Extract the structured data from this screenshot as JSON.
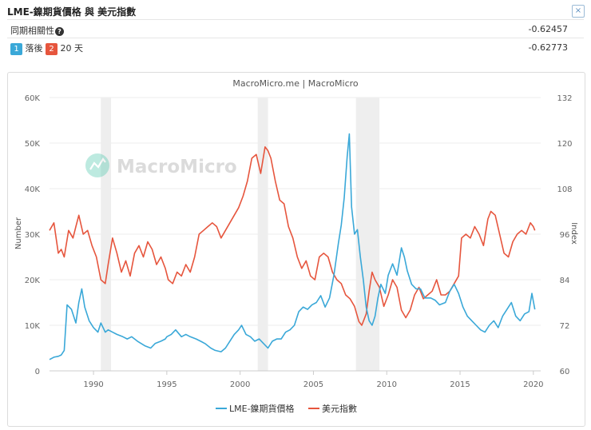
{
  "header": {
    "title": "LME-鎳期貨價格 與 美元指數",
    "close_icon": "close-icon",
    "corr_label": "同期相關性",
    "corr_value": "-0.62457",
    "lag_badge1": "1",
    "lag_text1": "落後",
    "lag_badge2": "2",
    "lag_text2": "20 天",
    "lag_value": "-0.62773"
  },
  "chart_data": {
    "type": "line",
    "title": "MacroMicro.me | MacroMicro",
    "watermark": "MacroMicro",
    "ylabel_left": "Number",
    "ylabel_right": "Index",
    "xlim": [
      1987,
      2020.5
    ],
    "ylim_left": [
      0,
      60000
    ],
    "ylim_right": [
      60,
      132
    ],
    "x_ticks": [
      "1990",
      "1995",
      "2000",
      "2005",
      "2010",
      "2015",
      "2020"
    ],
    "y_left_ticks": [
      "0",
      "10K",
      "20K",
      "30K",
      "40K",
      "50K",
      "60K"
    ],
    "y_right_ticks": [
      "60",
      "72",
      "84",
      "96",
      "108",
      "120",
      "132"
    ],
    "recessions": [
      [
        1990.5,
        1991.2
      ],
      [
        2001.2,
        2001.9
      ],
      [
        2007.9,
        2009.5
      ]
    ],
    "colors": {
      "nickel": "#3aa8d8",
      "usd": "#e6553d",
      "recession": "#eeeeee"
    },
    "series": [
      {
        "name": "LME-鎳期貨價格",
        "axis": "left",
        "x": [
          1987.0,
          1987.3,
          1987.6,
          1987.8,
          1988.0,
          1988.2,
          1988.5,
          1988.8,
          1989.0,
          1989.2,
          1989.4,
          1989.7,
          1990.0,
          1990.3,
          1990.5,
          1990.8,
          1991.0,
          1991.3,
          1991.6,
          1992.0,
          1992.3,
          1992.6,
          1993.0,
          1993.5,
          1993.9,
          1994.2,
          1994.6,
          1994.9,
          1995.0,
          1995.3,
          1995.6,
          1996.0,
          1996.3,
          1996.6,
          1997.0,
          1997.3,
          1997.6,
          1998.0,
          1998.3,
          1998.7,
          1999.0,
          1999.3,
          1999.6,
          1999.9,
          2000.1,
          2000.4,
          2000.7,
          2001.0,
          2001.3,
          2001.6,
          2001.9,
          2002.2,
          2002.5,
          2002.8,
          2003.1,
          2003.4,
          2003.7,
          2004.0,
          2004.3,
          2004.6,
          2004.9,
          2005.2,
          2005.5,
          2005.8,
          2006.1,
          2006.4,
          2006.7,
          2006.9,
          2007.1,
          2007.3,
          2007.45,
          2007.6,
          2007.8,
          2008.0,
          2008.2,
          2008.4,
          2008.6,
          2008.8,
          2009.0,
          2009.2,
          2009.4,
          2009.6,
          2009.9,
          2010.1,
          2010.4,
          2010.7,
          2011.0,
          2011.2,
          2011.4,
          2011.7,
          2012.0,
          2012.3,
          2012.6,
          2013.0,
          2013.3,
          2013.6,
          2014.0,
          2014.3,
          2014.6,
          2014.9,
          2015.2,
          2015.5,
          2015.8,
          2016.1,
          2016.4,
          2016.7,
          2017.0,
          2017.3,
          2017.6,
          2017.9,
          2018.2,
          2018.5,
          2018.8,
          2019.1,
          2019.4,
          2019.7,
          2019.9,
          2020.1
        ],
        "values": [
          2500,
          3000,
          3200,
          3500,
          4500,
          14500,
          13500,
          10500,
          15000,
          18000,
          14000,
          11000,
          9500,
          8500,
          10500,
          8500,
          9000,
          8500,
          8000,
          7500,
          7000,
          7500,
          6500,
          5500,
          5000,
          6000,
          6500,
          7000,
          7500,
          8000,
          9000,
          7500,
          8000,
          7500,
          7000,
          6500,
          6000,
          5000,
          4500,
          4200,
          5000,
          6500,
          8000,
          9000,
          10000,
          8000,
          7500,
          6500,
          7000,
          6000,
          5000,
          6500,
          7000,
          7000,
          8500,
          9000,
          10000,
          13000,
          14000,
          13500,
          14500,
          15000,
          16500,
          14000,
          16000,
          21000,
          28000,
          32000,
          38000,
          47000,
          52000,
          36000,
          30000,
          31000,
          25000,
          20000,
          14000,
          11000,
          10000,
          12000,
          16000,
          19000,
          17000,
          21000,
          23500,
          21000,
          27000,
          25000,
          22000,
          19000,
          18000,
          18000,
          16000,
          16000,
          15500,
          14500,
          15000,
          17500,
          19000,
          17000,
          14000,
          12000,
          11000,
          10000,
          9000,
          8500,
          10000,
          11000,
          9500,
          12000,
          13500,
          15000,
          12000,
          11000,
          12500,
          13000,
          17000,
          13500
        ]
      },
      {
        "name": "美元指數",
        "axis": "right",
        "x": [
          1987.0,
          1987.3,
          1987.6,
          1987.8,
          1988.0,
          1988.3,
          1988.6,
          1988.8,
          1989.0,
          1989.3,
          1989.6,
          1989.9,
          1990.2,
          1990.5,
          1990.8,
          1991.0,
          1991.3,
          1991.6,
          1991.9,
          1992.2,
          1992.5,
          1992.8,
          1993.1,
          1993.4,
          1993.7,
          1994.0,
          1994.3,
          1994.6,
          1994.9,
          1995.1,
          1995.4,
          1995.7,
          1996.0,
          1996.3,
          1996.6,
          1996.9,
          1997.2,
          1997.5,
          1997.8,
          1998.1,
          1998.4,
          1998.7,
          1999.0,
          1999.3,
          1999.6,
          1999.9,
          2000.2,
          2000.5,
          2000.8,
          2001.1,
          2001.4,
          2001.7,
          2001.9,
          2002.1,
          2002.4,
          2002.7,
          2003.0,
          2003.3,
          2003.6,
          2003.9,
          2004.2,
          2004.5,
          2004.8,
          2005.1,
          2005.4,
          2005.7,
          2006.0,
          2006.3,
          2006.6,
          2006.9,
          2007.2,
          2007.5,
          2007.8,
          2008.1,
          2008.3,
          2008.6,
          2008.8,
          2009.0,
          2009.2,
          2009.5,
          2009.8,
          2010.1,
          2010.4,
          2010.7,
          2011.0,
          2011.3,
          2011.6,
          2011.9,
          2012.2,
          2012.5,
          2012.8,
          2013.1,
          2013.4,
          2013.7,
          2014.0,
          2014.3,
          2014.6,
          2014.9,
          2015.1,
          2015.4,
          2015.7,
          2016.0,
          2016.3,
          2016.6,
          2016.9,
          2017.1,
          2017.4,
          2017.7,
          2018.0,
          2018.3,
          2018.6,
          2018.9,
          2019.2,
          2019.5,
          2019.8,
          2020.0,
          2020.1
        ],
        "values": [
          97,
          99,
          91,
          92,
          90,
          97,
          95,
          98,
          101,
          96,
          97,
          93,
          90,
          84,
          83,
          88,
          95,
          91,
          86,
          89,
          85,
          91,
          93,
          90,
          94,
          92,
          88,
          90,
          87,
          84,
          83,
          86,
          85,
          88,
          86,
          90,
          96,
          97,
          98,
          99,
          98,
          95,
          97,
          99,
          101,
          103,
          106,
          110,
          116,
          117,
          112,
          119,
          118,
          116,
          110,
          105,
          104,
          98,
          95,
          90,
          87,
          89,
          85,
          84,
          90,
          91,
          90,
          86,
          84,
          83,
          80,
          79,
          77,
          73,
          72,
          75,
          81,
          86,
          84,
          82,
          77,
          80,
          84,
          82,
          76,
          74,
          76,
          80,
          82,
          79,
          80,
          81,
          84,
          80,
          80,
          81,
          83,
          85,
          95,
          96,
          95,
          98,
          96,
          93,
          100,
          102,
          101,
          96,
          91,
          90,
          94,
          96,
          97,
          96,
          99,
          98,
          97
        ]
      }
    ]
  }
}
